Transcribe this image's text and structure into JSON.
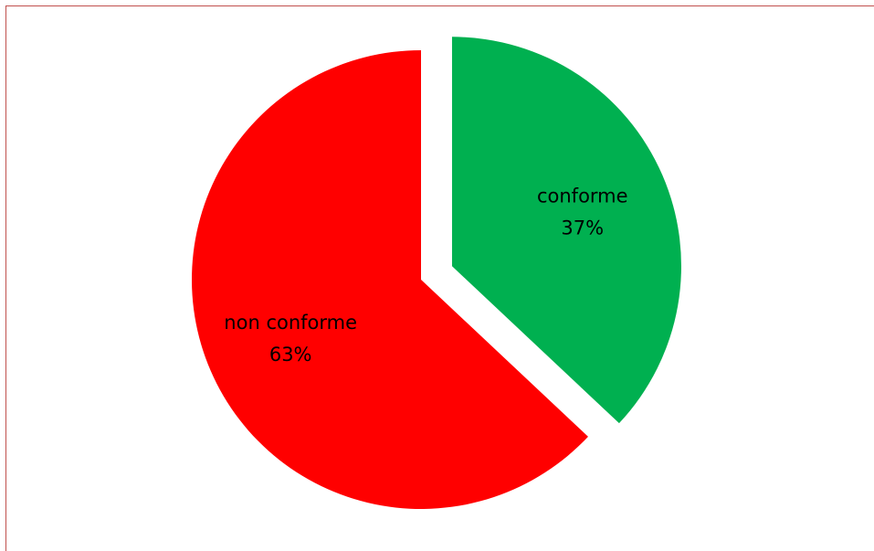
{
  "chart_data": {
    "type": "pie",
    "title": "",
    "categories": [
      "conforme",
      "non conforme"
    ],
    "values": [
      37,
      63
    ],
    "percent_labels": [
      "37%",
      "63%"
    ],
    "colors": [
      "#00b050",
      "#ff0000"
    ],
    "exploded": [
      "conforme"
    ],
    "start": "12 o'clock, clockwise",
    "legend": "none"
  }
}
